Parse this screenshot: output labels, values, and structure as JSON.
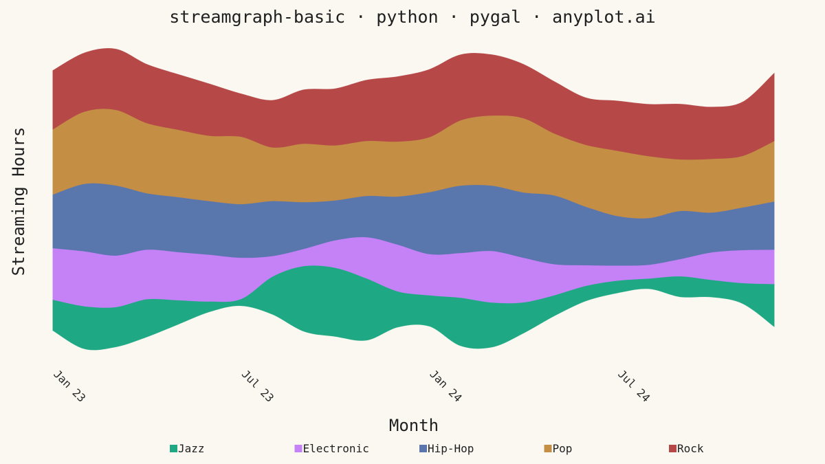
{
  "chart_data": {
    "type": "area",
    "subtype": "streamgraph",
    "baseline": "wiggle",
    "title": "streamgraph-basic · python · pygal · anyplot.ai",
    "xlabel": "Month",
    "ylabel": "Streaming Hours",
    "x": [
      "2023-01",
      "2023-02",
      "2023-03",
      "2023-04",
      "2023-05",
      "2023-06",
      "2023-07",
      "2023-08",
      "2023-09",
      "2023-10",
      "2023-11",
      "2023-12",
      "2024-01",
      "2024-02",
      "2024-03",
      "2024-04",
      "2024-05",
      "2024-06",
      "2024-07",
      "2024-08",
      "2024-09",
      "2024-10",
      "2024-11",
      "2024-12"
    ],
    "x_tick_labels": [
      {
        "x": "2023-01",
        "label": "Jan 23"
      },
      {
        "x": "2023-07",
        "label": "Jul 23"
      },
      {
        "x": "2024-01",
        "label": "Jan 24"
      },
      {
        "x": "2024-07",
        "label": "Jul 24"
      }
    ],
    "series": [
      {
        "name": "Jazz",
        "color": "#1FA884",
        "values": [
          45,
          62,
          58,
          55,
          35,
          15,
          10,
          55,
          95,
          100,
          90,
          52,
          45,
          70,
          65,
          45,
          30,
          22,
          18,
          15,
          30,
          25,
          30,
          62
        ]
      },
      {
        "name": "Electronic",
        "color": "#C582F7",
        "values": [
          75,
          80,
          75,
          72,
          70,
          68,
          60,
          30,
          25,
          40,
          60,
          68,
          60,
          65,
          75,
          65,
          45,
          30,
          22,
          20,
          25,
          40,
          48,
          50
        ]
      },
      {
        "name": "Hip-Hop",
        "color": "#5976AD",
        "values": [
          78,
          98,
          102,
          82,
          80,
          78,
          78,
          80,
          68,
          58,
          60,
          70,
          90,
          98,
          95,
          95,
          100,
          85,
          72,
          68,
          70,
          58,
          62,
          70
        ]
      },
      {
        "name": "Pop",
        "color": "#C48E45",
        "values": [
          95,
          105,
          110,
          102,
          98,
          95,
          98,
          78,
          85,
          80,
          80,
          80,
          80,
          95,
          102,
          108,
          90,
          90,
          95,
          90,
          75,
          78,
          75,
          88
        ]
      },
      {
        "name": "Rock",
        "color": "#B64848",
        "values": [
          85,
          85,
          88,
          85,
          80,
          75,
          62,
          68,
          78,
          82,
          88,
          94,
          98,
          95,
          88,
          78,
          75,
          68,
          72,
          75,
          80,
          75,
          78,
          98
        ]
      }
    ],
    "grid": false,
    "legend": "bottom"
  }
}
